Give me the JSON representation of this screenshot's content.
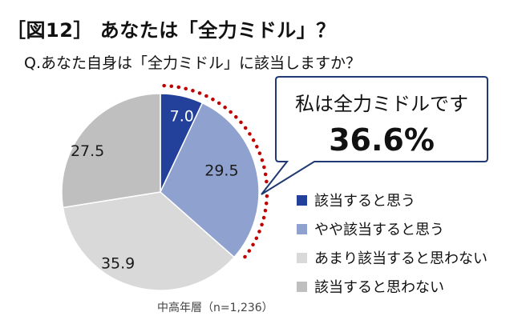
{
  "header": {
    "title": "［図12］ あなたは「全力ミドル」？",
    "question": "Q.あなた自身は「全力ミドル」に該当しますか？"
  },
  "callout": {
    "line1": "私は全力ミドルです",
    "line2": "36.6%"
  },
  "note": "中高年層（n=1,236）",
  "chart_data": {
    "type": "pie",
    "title": "",
    "start_angle_deg": 0,
    "direction": "clockwise",
    "categories": [
      "該当すると思う",
      "やや該当すると思う",
      "あまり該当すると思わない",
      "該当すると思わない"
    ],
    "values": [
      7.0,
      29.5,
      35.9,
      27.5
    ],
    "labels": [
      "7.0",
      "29.5",
      "35.9",
      "27.5"
    ],
    "colors": [
      "#23409a",
      "#8fa1cf",
      "#d9d9d9",
      "#bfbfbf"
    ],
    "highlight": {
      "series_indices": [
        0,
        1
      ],
      "total": "36.6%",
      "style": "dotted-arc",
      "color": "#c00000"
    },
    "legend": "right"
  }
}
